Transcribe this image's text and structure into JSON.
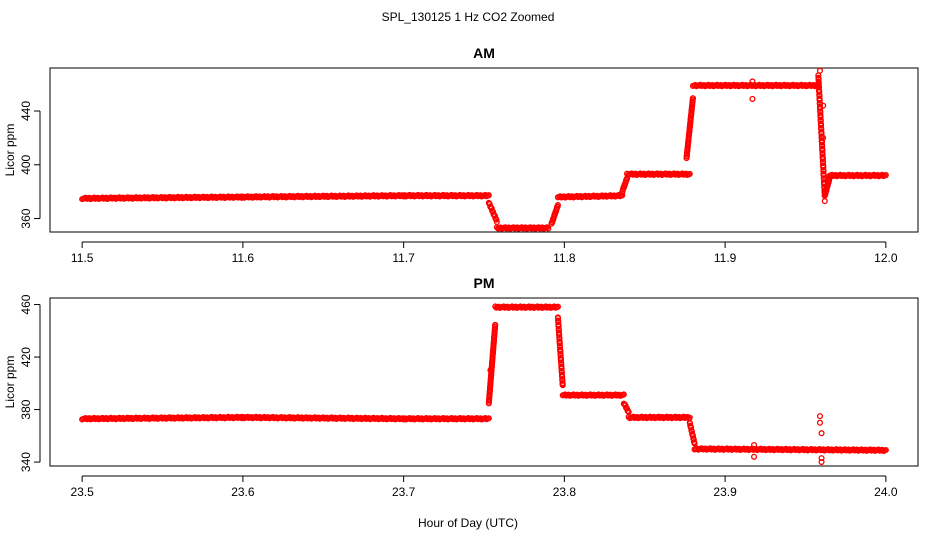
{
  "figure": {
    "title": "SPL_130125  1 Hz CO2 Zoomed",
    "xlabel": "Hour of Day (UTC)"
  },
  "colors": {
    "points": "#ff0000",
    "axes": "#000000",
    "background": "#ffffff"
  },
  "chart_data": [
    {
      "type": "scatter",
      "title": "AM",
      "xlabel": "",
      "ylabel": "Licor ppm",
      "xlim": [
        11.5,
        12.0
      ],
      "ylim": [
        350,
        472
      ],
      "x_ticks": [
        "11.5",
        "11.6",
        "11.7",
        "11.8",
        "11.9",
        "12.0"
      ],
      "y_ticks": [
        "360",
        "400",
        "440"
      ],
      "grid": false,
      "marker": "open-circle",
      "series": [
        {
          "segments": [
            {
              "x": [
                11.5,
                11.6
              ],
              "y": [
                375,
                376
              ]
            },
            {
              "x": [
                11.6,
                11.7
              ],
              "y": [
                376,
                377
              ]
            },
            {
              "x": [
                11.7,
                11.753
              ],
              "y": [
                377,
                377
              ]
            },
            {
              "x": [
                11.753,
                11.758
              ],
              "y": [
                372,
                358
              ]
            },
            {
              "x": [
                11.758,
                11.79
              ],
              "y": [
                353,
                353
              ]
            },
            {
              "x": [
                11.792,
                11.796
              ],
              "y": [
                356,
                370
              ]
            },
            {
              "x": [
                11.796,
                11.836
              ],
              "y": [
                376,
                377
              ]
            },
            {
              "x": [
                11.836,
                11.839
              ],
              "y": [
                380,
                390
              ]
            },
            {
              "x": [
                11.839,
                11.878
              ],
              "y": [
                393,
                393
              ]
            },
            {
              "x": [
                11.876,
                11.88
              ],
              "y": [
                405,
                450
              ]
            },
            {
              "x": [
                11.88,
                11.958
              ],
              "y": [
                459,
                459
              ]
            },
            {
              "x": [
                11.958,
                11.962
              ],
              "y": [
                466,
                377
              ]
            },
            {
              "x": [
                11.962,
                11.965
              ],
              "y": [
                377,
                390
              ]
            },
            {
              "x": [
                11.965,
                12.0
              ],
              "y": [
                392,
                392
              ]
            }
          ],
          "outliers": [
            {
              "x": 11.917,
              "y": 462
            },
            {
              "x": 11.917,
              "y": 449
            },
            {
              "x": 11.959,
              "y": 470
            },
            {
              "x": 11.961,
              "y": 444
            },
            {
              "x": 11.961,
              "y": 420
            },
            {
              "x": 11.962,
              "y": 373
            }
          ]
        }
      ]
    },
    {
      "type": "scatter",
      "title": "PM",
      "xlabel": "Hour of Day (UTC)",
      "ylabel": "Licor ppm",
      "xlim": [
        23.5,
        24.0
      ],
      "ylim": [
        337,
        465
      ],
      "x_ticks": [
        "23.5",
        "23.6",
        "23.7",
        "23.8",
        "23.9",
        "24.0"
      ],
      "y_ticks": [
        "340",
        "380",
        "420",
        "460"
      ],
      "grid": false,
      "marker": "open-circle",
      "series": [
        {
          "segments": [
            {
              "x": [
                23.5,
                23.6
              ],
              "y": [
                373,
                374
              ]
            },
            {
              "x": [
                23.6,
                23.7
              ],
              "y": [
                374,
                373
              ]
            },
            {
              "x": [
                23.7,
                23.753
              ],
              "y": [
                373,
                373
              ]
            },
            {
              "x": [
                23.753,
                23.757
              ],
              "y": [
                385,
                445
              ]
            },
            {
              "x": [
                23.757,
                23.796
              ],
              "y": [
                458,
                458
              ]
            },
            {
              "x": [
                23.796,
                23.799
              ],
              "y": [
                450,
                398
              ]
            },
            {
              "x": [
                23.799,
                23.837
              ],
              "y": [
                391,
                391
              ]
            },
            {
              "x": [
                23.837,
                23.84
              ],
              "y": [
                385,
                378
              ]
            },
            {
              "x": [
                23.84,
                23.878
              ],
              "y": [
                374,
                374
              ]
            },
            {
              "x": [
                23.878,
                23.881
              ],
              "y": [
                370,
                354
              ]
            },
            {
              "x": [
                23.881,
                24.0
              ],
              "y": [
                350,
                349
              ]
            }
          ],
          "outliers": [
            {
              "x": 23.754,
              "y": 410
            },
            {
              "x": 23.918,
              "y": 353
            },
            {
              "x": 23.918,
              "y": 344
            },
            {
              "x": 23.959,
              "y": 375
            },
            {
              "x": 23.959,
              "y": 370
            },
            {
              "x": 23.96,
              "y": 362
            },
            {
              "x": 23.96,
              "y": 343
            },
            {
              "x": 23.96,
              "y": 340
            }
          ]
        }
      ]
    }
  ]
}
